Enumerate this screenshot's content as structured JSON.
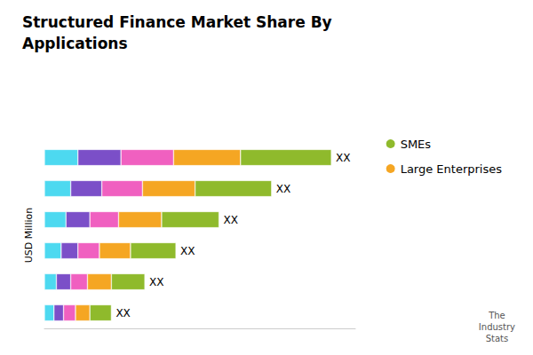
{
  "chart_data": {
    "type": "bar",
    "orientation": "horizontal",
    "stacked": true,
    "title": "Structured Finance Market Share By\nApplications",
    "ylabel": "USD Million",
    "categories": [
      null,
      null,
      null,
      null,
      null,
      null
    ],
    "series": [
      {
        "color": "#4dd9f0",
        "values": [
          14,
          11,
          9,
          7,
          5,
          4
        ]
      },
      {
        "color": "#7b4fc8",
        "values": [
          18,
          13,
          10,
          7,
          6,
          4
        ]
      },
      {
        "color": "#f060c0",
        "values": [
          22,
          17,
          12,
          9,
          7,
          5
        ]
      },
      {
        "name": "Large Enterprises",
        "color": "#f5a623",
        "values": [
          28,
          22,
          18,
          13,
          10,
          6
        ]
      },
      {
        "name": "SMEs",
        "color": "#8fba2c",
        "values": [
          38,
          32,
          24,
          19,
          14,
          9
        ]
      }
    ],
    "bar_labels": [
      "XX",
      "XX",
      "XX",
      "XX",
      "XX",
      "XX"
    ],
    "annotations": [
      "The\nIndustry\nStats"
    ],
    "xlim": [
      0,
      130
    ],
    "tick_labels": false,
    "grid": false,
    "legend": "upper right"
  }
}
